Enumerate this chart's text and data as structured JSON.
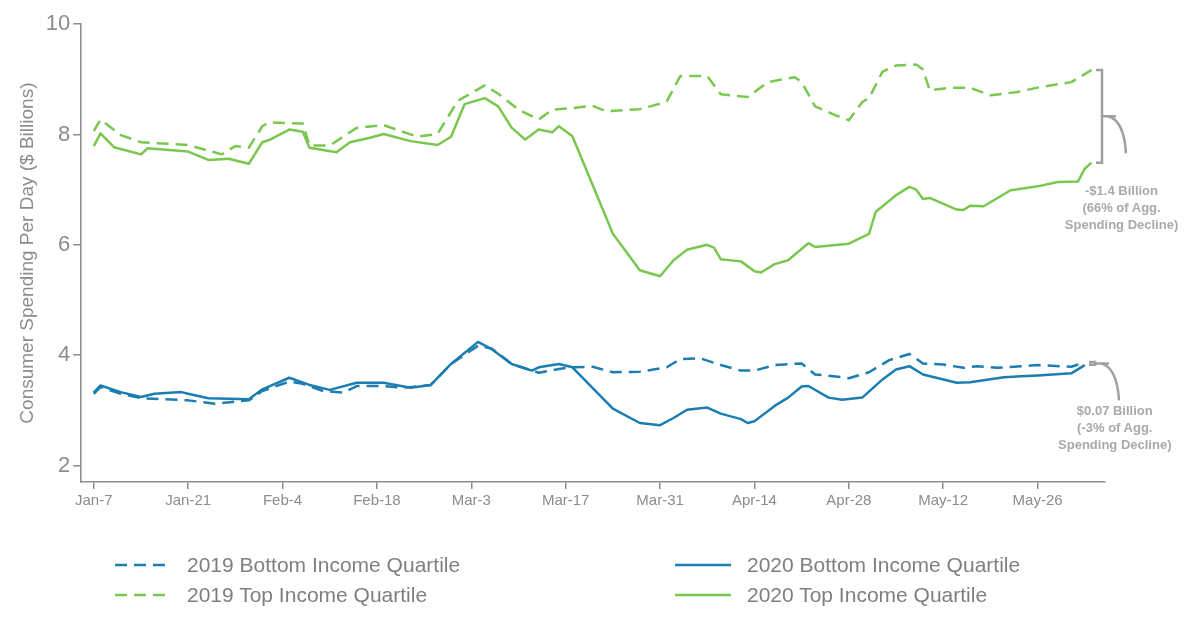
{
  "chart_data": {
    "type": "line",
    "ylabel": "Consumer Spending Per Day ($ Billions)",
    "xlim": [
      "--01-05",
      "--06-05"
    ],
    "xticks": [
      {
        "value": "--01-07",
        "label": "Jan-7"
      },
      {
        "value": "--01-21",
        "label": "Jan-21"
      },
      {
        "value": "--02-04",
        "label": "Feb-4"
      },
      {
        "value": "--02-18",
        "label": "Feb-18"
      },
      {
        "value": "--03-03",
        "label": "Mar-3"
      },
      {
        "value": "--03-17",
        "label": "Mar-17"
      },
      {
        "value": "--03-31",
        "label": "Mar-31"
      },
      {
        "value": "--04-14",
        "label": "Apr-14"
      },
      {
        "value": "--04-28",
        "label": "Apr-28"
      },
      {
        "value": "--05-12",
        "label": "May-12"
      },
      {
        "value": "--05-26",
        "label": "May-26"
      }
    ],
    "ylim": [
      1.7,
      10
    ],
    "yticks": [
      2,
      4,
      6,
      8,
      10
    ],
    "grid": false,
    "legend": "bottom",
    "marker": "none",
    "annotations": [
      "-$1.4 Billion\n(66% of Agg.\nSpending Decline)",
      "$0.07 Billion\n(-3% of Agg.\nSpending Decline)"
    ],
    "series": [
      {
        "name": "2019 Bottom Income Quartile",
        "color": "#1b7db0",
        "line_style": "dashed",
        "x": [
          "--01-07",
          "--01-08",
          "--01-11",
          "--01-14",
          "--01-21",
          "--01-25",
          "--01-30",
          "--02-01",
          "--02-05",
          "--02-07",
          "--02-10",
          "--02-13",
          "--02-15",
          "--02-19",
          "--02-22",
          "--02-26",
          "--02-29",
          "--03-04",
          "--03-06",
          "--03-09",
          "--03-13",
          "--03-16",
          "--03-18",
          "--03-21",
          "--03-24",
          "--03-28",
          "--04-01",
          "--04-03",
          "--04-06",
          "--04-09",
          "--04-12",
          "--04-14",
          "--04-17",
          "--04-21",
          "--04-23",
          "--04-27",
          "--04-28",
          "--05-01",
          "--05-04",
          "--05-07",
          "--05-09",
          "--05-12",
          "--05-15",
          "--05-17",
          "--05-20",
          "--05-26",
          "--05-31",
          "--06-02"
        ],
        "values": [
          3.3,
          3.42,
          3.3,
          3.22,
          3.18,
          3.12,
          3.18,
          3.35,
          3.52,
          3.48,
          3.35,
          3.32,
          3.44,
          3.44,
          3.41,
          3.46,
          3.84,
          4.17,
          4.12,
          3.84,
          3.68,
          3.75,
          3.78,
          3.79,
          3.69,
          3.7,
          3.78,
          3.93,
          3.94,
          3.82,
          3.72,
          3.72,
          3.82,
          3.85,
          3.65,
          3.6,
          3.58,
          3.69,
          3.91,
          4.02,
          3.85,
          3.83,
          3.77,
          3.8,
          3.77,
          3.82,
          3.79,
          3.87
        ]
      },
      {
        "name": "2020 Bottom Income Quartile",
        "color": "#1b7db0",
        "line_style": "solid",
        "x": [
          "--01-07",
          "--01-08",
          "--01-11",
          "--01-14",
          "--01-16",
          "--01-20",
          "--01-21",
          "--01-24",
          "--01-30",
          "--02-01",
          "--02-05",
          "--02-08",
          "--02-11",
          "--02-15",
          "--02-19",
          "--02-23",
          "--02-26",
          "--02-29",
          "--03-04",
          "--03-06",
          "--03-09",
          "--03-12",
          "--03-13",
          "--03-16",
          "--03-18",
          "--03-24",
          "--03-28",
          "--03-31",
          "--04-02",
          "--04-04",
          "--04-07",
          "--04-09",
          "--04-12",
          "--04-13",
          "--04-14",
          "--04-17",
          "--04-19",
          "--04-21",
          "--04-22",
          "--04-25",
          "--04-27",
          "--04-30",
          "--05-03",
          "--05-05",
          "--05-07",
          "--05-09",
          "--05-14",
          "--05-16",
          "--05-21",
          "--05-26",
          "--05-31",
          "--06-02"
        ],
        "values": [
          3.32,
          3.45,
          3.33,
          3.24,
          3.3,
          3.33,
          3.3,
          3.22,
          3.2,
          3.38,
          3.59,
          3.46,
          3.37,
          3.5,
          3.5,
          3.41,
          3.46,
          3.84,
          4.24,
          4.11,
          3.84,
          3.72,
          3.78,
          3.84,
          3.78,
          3.03,
          2.77,
          2.73,
          2.86,
          3.01,
          3.05,
          2.94,
          2.84,
          2.77,
          2.8,
          3.08,
          3.23,
          3.43,
          3.44,
          3.23,
          3.19,
          3.23,
          3.56,
          3.74,
          3.8,
          3.65,
          3.5,
          3.51,
          3.6,
          3.63,
          3.67,
          3.82
        ]
      },
      {
        "name": "2019 Top Income Quartile",
        "color": "#7ac74f",
        "line_style": "dashed",
        "x": [
          "--01-07",
          "--01-08",
          "--01-11",
          "--01-14",
          "--01-21",
          "--01-26",
          "--01-28",
          "--01-30",
          "--02-01",
          "--02-02",
          "--02-07",
          "--02-08",
          "--02-11",
          "--02-15",
          "--02-19",
          "--02-24",
          "--02-27",
          "--03-01",
          "--03-05",
          "--03-07",
          "--03-10",
          "--03-13",
          "--03-15",
          "--03-18",
          "--03-21",
          "--03-23",
          "--03-28",
          "--03-31",
          "--04-01",
          "--04-03",
          "--04-07",
          "--04-09",
          "--04-13",
          "--04-16",
          "--04-20",
          "--04-21",
          "--04-23",
          "--04-26",
          "--04-28",
          "--04-30",
          "--05-01",
          "--05-03",
          "--05-05",
          "--05-08",
          "--05-09",
          "--05-10",
          "--05-13",
          "--05-16",
          "--05-19",
          "--05-23",
          "--05-26",
          "--05-31",
          "--06-03"
        ],
        "values": [
          8.06,
          8.27,
          7.99,
          7.86,
          7.81,
          7.64,
          7.79,
          7.76,
          8.15,
          8.22,
          8.2,
          7.8,
          7.8,
          8.12,
          8.17,
          7.96,
          8.01,
          8.61,
          8.89,
          8.74,
          8.45,
          8.27,
          8.45,
          8.48,
          8.52,
          8.42,
          8.46,
          8.56,
          8.6,
          9.06,
          9.06,
          8.73,
          8.68,
          8.95,
          9.04,
          8.95,
          8.51,
          8.35,
          8.26,
          8.59,
          8.66,
          9.14,
          9.25,
          9.27,
          9.18,
          8.8,
          8.85,
          8.85,
          8.71,
          8.77,
          8.85,
          8.95,
          9.17
        ]
      },
      {
        "name": "2020 Top Income Quartile",
        "color": "#7ac74f",
        "line_style": "solid",
        "x": [
          "--01-07",
          "--01-08",
          "--01-10",
          "--01-14",
          "--01-15",
          "--01-21",
          "--01-24",
          "--01-27",
          "--01-30",
          "--02-01",
          "--02-02",
          "--02-05",
          "--02-07",
          "--02-08",
          "--02-12",
          "--02-14",
          "--02-17",
          "--02-19",
          "--02-23",
          "--02-27",
          "--02-29",
          "--03-02",
          "--03-05",
          "--03-07",
          "--03-09",
          "--03-11",
          "--03-13",
          "--03-15",
          "--03-16",
          "--03-18",
          "--03-24",
          "--03-28",
          "--03-31",
          "--04-02",
          "--04-04",
          "--04-07",
          "--04-08",
          "--04-09",
          "--04-12",
          "--04-14",
          "--04-15",
          "--04-17",
          "--04-19",
          "--04-22",
          "--04-23",
          "--04-28",
          "--05-01",
          "--05-02",
          "--05-05",
          "--05-07",
          "--05-08",
          "--05-09",
          "--05-10",
          "--05-14",
          "--05-15",
          "--05-16",
          "--05-18",
          "--05-22",
          "--05-26",
          "--05-29",
          "--06-01",
          "--06-02",
          "--06-03"
        ],
        "values": [
          7.79,
          8.02,
          7.77,
          7.64,
          7.75,
          7.69,
          7.54,
          7.56,
          7.47,
          7.86,
          7.9,
          8.09,
          8.05,
          7.76,
          7.68,
          7.86,
          7.94,
          8.01,
          7.88,
          7.81,
          7.96,
          8.55,
          8.66,
          8.51,
          8.12,
          7.91,
          8.09,
          8.04,
          8.15,
          7.97,
          6.2,
          5.54,
          5.43,
          5.72,
          5.91,
          6.0,
          5.95,
          5.74,
          5.7,
          5.52,
          5.5,
          5.65,
          5.72,
          6.03,
          5.96,
          6.02,
          6.2,
          6.6,
          6.9,
          7.05,
          7.0,
          6.83,
          6.85,
          6.64,
          6.63,
          6.71,
          6.7,
          6.99,
          7.06,
          7.14,
          7.15,
          7.38,
          7.49
        ]
      }
    ]
  }
}
